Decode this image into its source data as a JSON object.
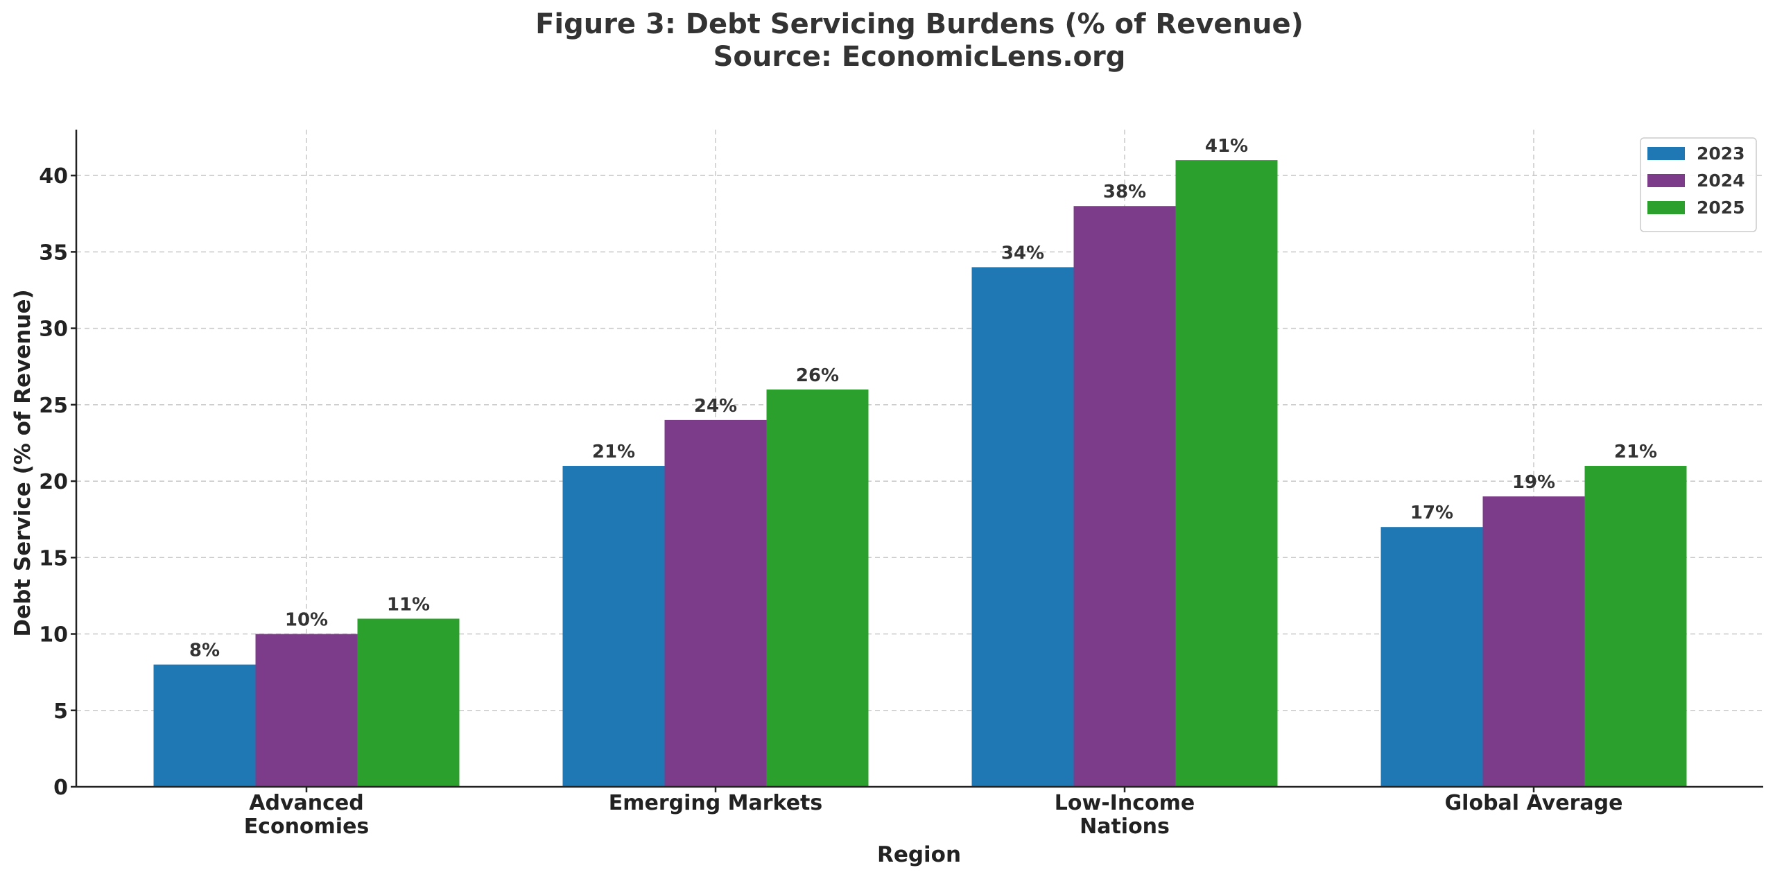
{
  "chart_data": {
    "type": "bar",
    "title_lines": [
      "Figure 3: Debt Servicing Burdens (% of Revenue)",
      "Source: EconomicLens.org"
    ],
    "xlabel": "Region",
    "ylabel": "Debt Service (% of Revenue)",
    "categories": [
      [
        "Advanced",
        "Economies"
      ],
      [
        "Emerging Markets"
      ],
      [
        "Low-Income",
        "Nations"
      ],
      [
        "Global Average"
      ]
    ],
    "ylim": [
      0,
      43
    ],
    "yticks": [
      0,
      5,
      10,
      15,
      20,
      25,
      30,
      35,
      40
    ],
    "grid": true,
    "legend_position": "top-right",
    "series": [
      {
        "name": "2023",
        "color": "#1f77b4",
        "values": [
          8,
          21,
          34,
          17
        ],
        "labels": [
          "8%",
          "21%",
          "34%",
          "17%"
        ]
      },
      {
        "name": "2024",
        "color": "#7d3c8a",
        "values": [
          10,
          24,
          38,
          19
        ],
        "labels": [
          "10%",
          "24%",
          "38%",
          "19%"
        ]
      },
      {
        "name": "2025",
        "color": "#2ca02c",
        "values": [
          11,
          26,
          41,
          21
        ],
        "labels": [
          "11%",
          "26%",
          "41%",
          "21%"
        ]
      }
    ]
  }
}
